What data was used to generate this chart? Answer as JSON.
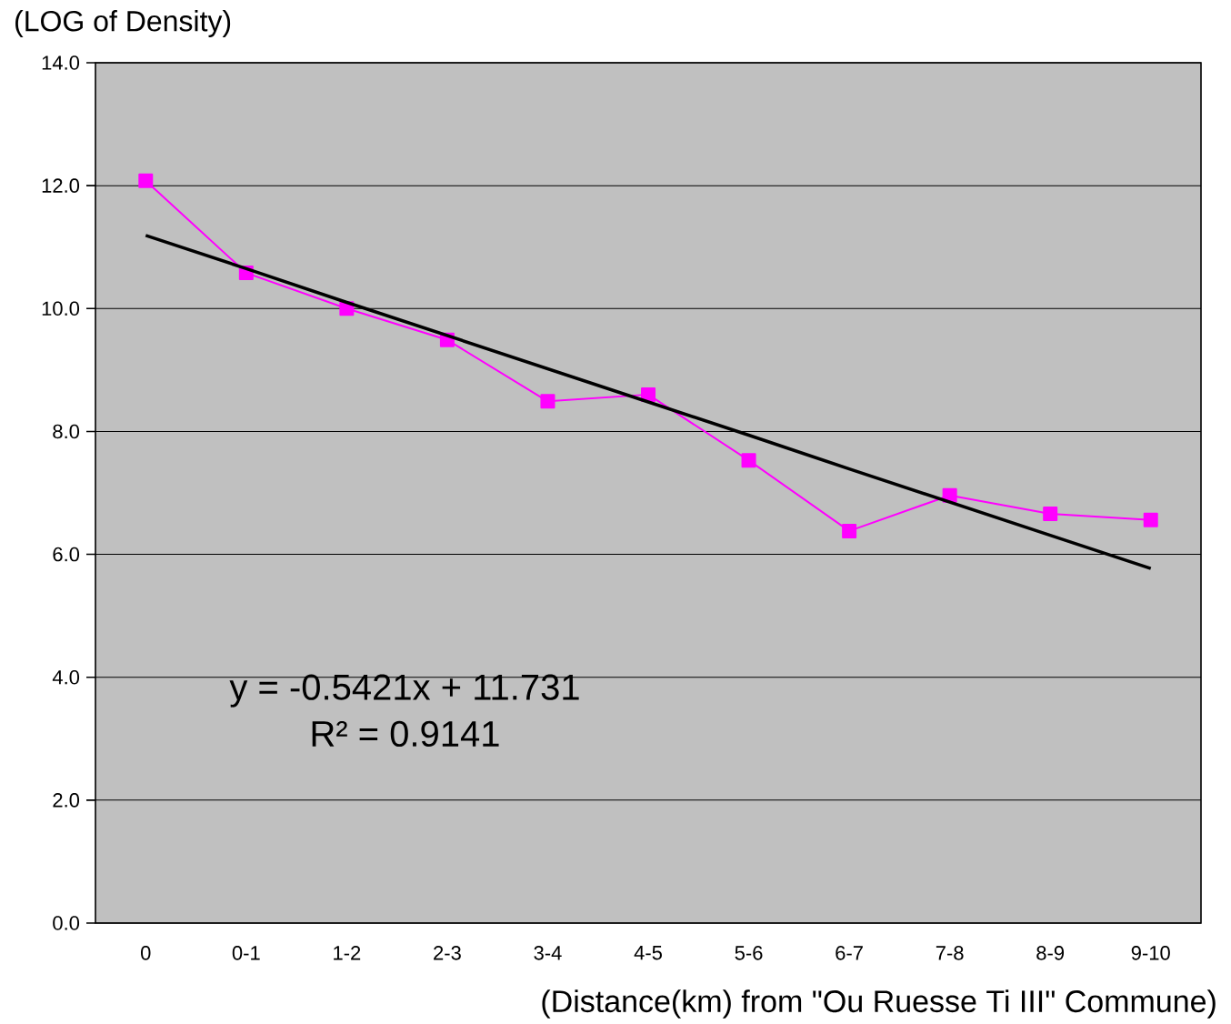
{
  "chart_data": {
    "type": "line",
    "xlabel": "(Distance(km) from \"Ou Ruesse Ti III\" Commune)",
    "ylabel": "(LOG of Density)",
    "categories": [
      "0",
      "0-1",
      "1-2",
      "2-3",
      "3-4",
      "4-5",
      "5-6",
      "6-7",
      "7-8",
      "8-9",
      "9-10"
    ],
    "series": [
      {
        "color": "#ff00ff",
        "marker": "square",
        "values": [
          12.08,
          10.58,
          10.0,
          9.49,
          8.49,
          8.6,
          7.53,
          6.38,
          6.96,
          6.66,
          6.56
        ]
      },
      {
        "color": "#000000",
        "marker": "none",
        "values": [
          11.19,
          10.65,
          10.1,
          9.56,
          9.02,
          8.48,
          7.94,
          7.39,
          6.85,
          6.31,
          5.77
        ]
      }
    ],
    "ylim": [
      0,
      14
    ],
    "yticks": [
      {
        "value": 0,
        "label": "0.0"
      },
      {
        "value": 2,
        "label": "2.0"
      },
      {
        "value": 4,
        "label": "4.0"
      },
      {
        "value": 6,
        "label": "6.0"
      },
      {
        "value": 8,
        "label": "8.0"
      },
      {
        "value": 10,
        "label": "10.0"
      },
      {
        "value": 12,
        "label": "12.0"
      },
      {
        "value": 14,
        "label": "14.0"
      }
    ],
    "grid": "y",
    "line_style": "solid",
    "annotations": [
      "y = -0.5421x + 11.731",
      "R² = 0.9141"
    ]
  }
}
